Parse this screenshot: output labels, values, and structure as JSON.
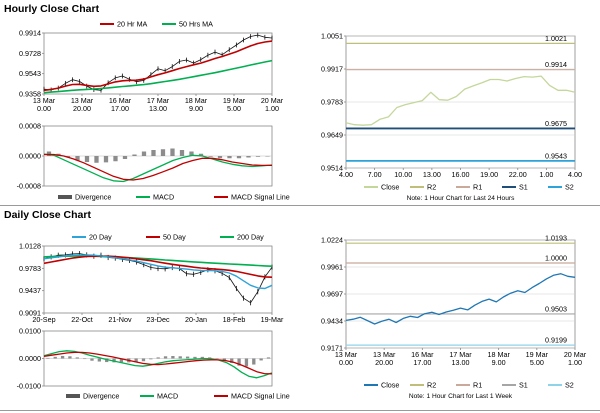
{
  "colors": {
    "red": "#C00000",
    "green": "#00B050",
    "black": "#111111",
    "s1": "#1F4E79",
    "s2": "#2EA3D9",
    "r1": "#C9A99A",
    "r2": "#BFBF7A",
    "close_light": "#C4D79B",
    "close_blue": "#1F77B4",
    "gridline": "#D0D0D0",
    "level_line": "#8FAADC"
  },
  "sections": {
    "hourly_title": "Hourly Close Chart",
    "daily_title": "Daily Close Chart"
  },
  "chart_data": [
    {
      "id": "hourly_price",
      "type": "line",
      "title": "",
      "legend": [
        "20 Hr MA",
        "50 Hrs MA"
      ],
      "yticks": [
        "0.9914",
        "0.9728",
        "0.9543",
        "0.9358"
      ],
      "ylim": [
        0.9358,
        0.9914
      ],
      "xlabels": [
        [
          "13 Mar",
          "0.00"
        ],
        [
          "13 Mar",
          "20.00"
        ],
        [
          "16 Mar",
          "17.00"
        ],
        [
          "17 Mar",
          "13.00"
        ],
        [
          "18 Mar",
          "9.00"
        ],
        [
          "19 Mar",
          "5.00"
        ],
        [
          "20 Mar",
          "1.00"
        ]
      ],
      "series": [
        {
          "name": "Close",
          "values": [
            0.9402,
            0.9395,
            0.9412,
            0.9455,
            0.9488,
            0.9472,
            0.943,
            0.9398,
            0.9392,
            0.946,
            0.9505,
            0.9522,
            0.9492,
            0.947,
            0.9482,
            0.9535,
            0.9588,
            0.957,
            0.9608,
            0.9655,
            0.9668,
            0.964,
            0.9672,
            0.9712,
            0.974,
            0.9715,
            0.9762,
            0.9805,
            0.985,
            0.9882,
            0.9895,
            0.9875,
            0.9868
          ]
        },
        {
          "name": "20 Hr MA",
          "values": [
            0.9392,
            0.94,
            0.9412,
            0.943,
            0.9445,
            0.9446,
            0.9436,
            0.9428,
            0.9432,
            0.945,
            0.9468,
            0.9478,
            0.9482,
            0.9484,
            0.9494,
            0.9514,
            0.9534,
            0.955,
            0.957,
            0.959,
            0.9608,
            0.9624,
            0.964,
            0.966,
            0.9682,
            0.97,
            0.9722,
            0.9744,
            0.977,
            0.9796,
            0.9818,
            0.9832,
            0.984
          ]
        },
        {
          "name": "50 Hrs MA",
          "values": [
            0.937,
            0.9375,
            0.938,
            0.9386,
            0.9392,
            0.9396,
            0.94,
            0.9404,
            0.9408,
            0.9414,
            0.942,
            0.9426,
            0.9432,
            0.9438,
            0.9444,
            0.9452,
            0.9462,
            0.9472,
            0.9482,
            0.9492,
            0.9504,
            0.9516,
            0.9528,
            0.954,
            0.9552,
            0.9566,
            0.958,
            0.9594,
            0.9608,
            0.9622,
            0.9636,
            0.965,
            0.9662
          ]
        }
      ]
    },
    {
      "id": "hourly_macd",
      "type": "line",
      "yticks": [
        "0.0008",
        "0.0000",
        "-0.0008"
      ],
      "ylim": [
        -0.0008,
        0.0008
      ],
      "legend": [
        "Divergence",
        "MACD",
        "MACD Signal Line"
      ],
      "series": [
        {
          "name": "MACD",
          "values": [
            5e-05,
            2e-05,
            -0.0001,
            -0.00022,
            -0.00034,
            -0.00046,
            -0.00058,
            -0.00066,
            -0.00068,
            -0.0006,
            -0.00048,
            -0.00036,
            -0.00024,
            -0.00012,
            -4e-05,
            2e-05,
            0.0,
            -8e-05,
            -0.00016,
            -0.00022,
            -0.00026,
            -0.00028,
            -0.00026,
            -0.00024
          ]
        },
        {
          "name": "MACD Signal Line",
          "values": [
            4e-05,
            4e-05,
            0.0,
            -8e-05,
            -0.00018,
            -0.0003,
            -0.00042,
            -0.00054,
            -0.00062,
            -0.00064,
            -0.0006,
            -0.00052,
            -0.00042,
            -0.00032,
            -0.0002,
            -0.00012,
            -6e-05,
            -6e-05,
            -0.0001,
            -0.00016,
            -0.0002,
            -0.00024,
            -0.00025,
            -0.00025
          ]
        },
        {
          "name": "Divergence",
          "values": [
            0.00012,
            6e-05,
            -4e-05,
            -0.00012,
            -0.00016,
            -0.00018,
            -0.00017,
            -0.00014,
            -8e-05,
            4e-05,
            0.00012,
            0.00016,
            0.00018,
            0.0002,
            0.00016,
            0.00012,
            6e-05,
            -2e-05,
            -6e-05,
            -6e-05,
            -6e-05,
            -4e-05,
            -2e-05,
            0.0
          ]
        }
      ]
    },
    {
      "id": "hourly_levels",
      "type": "line",
      "yticks": [
        "1.0051",
        "0.9917",
        "0.9783",
        "0.9649",
        "0.9514"
      ],
      "ylim": [
        0.9514,
        1.0051
      ],
      "xlabels": [
        "4.00",
        "7.00",
        "10.00",
        "13.00",
        "16.00",
        "19.00",
        "22.00",
        "1.00",
        "4.00"
      ],
      "levels": [
        {
          "name": "R2",
          "value": 1.0021,
          "label": "1.0021"
        },
        {
          "name": "R1",
          "value": 0.9914,
          "label": "0.9914"
        },
        {
          "name": "S1",
          "value": 0.9675,
          "label": "0.9675"
        },
        {
          "name": "S2",
          "value": 0.9543,
          "label": "0.9543"
        }
      ],
      "series": [
        {
          "name": "Close",
          "values": [
            0.9698,
            0.969,
            0.9688,
            0.969,
            0.9712,
            0.9722,
            0.976,
            0.9772,
            0.978,
            0.9788,
            0.9822,
            0.9792,
            0.979,
            0.9805,
            0.9835,
            0.9848,
            0.986,
            0.9874,
            0.9874,
            0.9868,
            0.9878,
            0.9886,
            0.9884,
            0.9888,
            0.985,
            0.983,
            0.983,
            0.9822
          ]
        }
      ],
      "legend": [
        "Close",
        "R2",
        "R1",
        "S1",
        "S2"
      ],
      "note": "Note: 1 Hour Chart for Last 24 Hours"
    },
    {
      "id": "daily_price",
      "type": "line",
      "legend": [
        "20 Day",
        "50 Day",
        "200 Day"
      ],
      "yticks": [
        "1.0128",
        "0.9783",
        "0.9437",
        "0.9091"
      ],
      "ylim": [
        0.9091,
        1.0128
      ],
      "xlabels": [
        "20-Sep",
        "22-Oct",
        "21-Nov",
        "23-Dec",
        "20-Jan",
        "18-Feb",
        "19-Mar"
      ],
      "series": [
        {
          "name": "Close",
          "values": [
            0.993,
            0.996,
            0.9985,
            0.999,
            1.0005,
            1.001,
            0.999,
            0.997,
            0.9985,
            0.995,
            0.994,
            0.992,
            0.9905,
            0.988,
            0.984,
            0.9795,
            0.978,
            0.9775,
            0.9795,
            0.978,
            0.97,
            0.969,
            0.972,
            0.976,
            0.9745,
            0.9705,
            0.964,
            0.947,
            0.932,
            0.925,
            0.942,
            0.965,
            0.98
          ]
        },
        {
          "name": "20 Day",
          "values": [
            0.993,
            0.9945,
            0.996,
            0.9975,
            0.9985,
            0.999,
            0.999,
            0.9985,
            0.9975,
            0.996,
            0.9945,
            0.993,
            0.9915,
            0.9895,
            0.987,
            0.9845,
            0.982,
            0.98,
            0.979,
            0.9782,
            0.977,
            0.9758,
            0.975,
            0.9748,
            0.9745,
            0.9735,
            0.971,
            0.966,
            0.959,
            0.952,
            0.948,
            0.947,
            0.952
          ]
        },
        {
          "name": "50 Day",
          "values": [
            0.986,
            0.988,
            0.99,
            0.992,
            0.994,
            0.9955,
            0.9965,
            0.997,
            0.9972,
            0.997,
            0.9965,
            0.9955,
            0.9945,
            0.993,
            0.9915,
            0.99,
            0.988,
            0.9862,
            0.9845,
            0.983,
            0.9815,
            0.98,
            0.9788,
            0.9778,
            0.977,
            0.9762,
            0.9752,
            0.9735,
            0.9712,
            0.9688,
            0.9665,
            0.965,
            0.9645
          ]
        },
        {
          "name": "200 Day",
          "values": [
            0.996,
            0.9965,
            0.9968,
            0.997,
            0.9972,
            0.9972,
            0.997,
            0.9968,
            0.9965,
            0.996,
            0.9955,
            0.995,
            0.9945,
            0.994,
            0.9935,
            0.9928,
            0.992,
            0.9912,
            0.9905,
            0.9898,
            0.989,
            0.9882,
            0.9875,
            0.9868,
            0.9862,
            0.9856,
            0.985,
            0.9844,
            0.9838,
            0.9832,
            0.9826,
            0.982,
            0.9815
          ]
        }
      ]
    },
    {
      "id": "daily_macd",
      "type": "line",
      "yticks": [
        "0.0100",
        "0.0000",
        "-0.0100"
      ],
      "ylim": [
        -0.01,
        0.01
      ],
      "legend": [
        "Divergence",
        "MACD",
        "MACD Signal Line"
      ],
      "series": [
        {
          "name": "MACD",
          "values": [
            0.001,
            0.0018,
            0.0025,
            0.0028,
            0.0026,
            0.002,
            0.0012,
            0.0005,
            -0.0002,
            -0.0008,
            -0.0014,
            -0.002,
            -0.0026,
            -0.0028,
            -0.0024,
            -0.0018,
            -0.0012,
            -0.0008,
            -0.0006,
            -0.0004,
            -0.0002,
            0.0,
            -0.0001,
            -0.0006,
            -0.0015,
            -0.003,
            -0.005,
            -0.0065,
            -0.007,
            -0.0062,
            -0.0052
          ]
        },
        {
          "name": "MACD Signal Line",
          "values": [
            0.0008,
            0.0012,
            0.0016,
            0.002,
            0.0022,
            0.0022,
            0.002,
            0.0016,
            0.0011,
            0.0006,
            0.0,
            -0.0006,
            -0.0012,
            -0.0018,
            -0.0021,
            -0.0022,
            -0.002,
            -0.0017,
            -0.0014,
            -0.0011,
            -0.0008,
            -0.0006,
            -0.0005,
            -0.0005,
            -0.0008,
            -0.0014,
            -0.0024,
            -0.0036,
            -0.0048,
            -0.0055,
            -0.0056
          ]
        },
        {
          "name": "Divergence",
          "values": [
            0.0002,
            0.0006,
            0.0009,
            0.0008,
            0.0004,
            -0.0002,
            -0.0008,
            -0.0011,
            -0.0013,
            -0.0014,
            -0.0014,
            -0.0014,
            -0.0014,
            -0.001,
            -0.0003,
            0.0004,
            0.0008,
            0.0009,
            0.0008,
            0.0007,
            0.0006,
            0.0006,
            0.0004,
            -0.0001,
            -0.0007,
            -0.0016,
            -0.0026,
            -0.0029,
            -0.0022,
            -0.0007,
            0.0004
          ]
        }
      ]
    },
    {
      "id": "daily_levels",
      "type": "line",
      "yticks": [
        "1.0224",
        "0.9961",
        "0.9697",
        "0.9434",
        "0.9171"
      ],
      "ylim": [
        0.9171,
        1.0224
      ],
      "xlabels": [
        [
          "13 Mar",
          "0.00"
        ],
        [
          "13 Mar",
          "20.00"
        ],
        [
          "16 Mar",
          "17.00"
        ],
        [
          "17 Mar",
          "13.00"
        ],
        [
          "18 Mar",
          "9.00"
        ],
        [
          "19 Mar",
          "5.00"
        ],
        [
          "20 Mar",
          "1.00"
        ]
      ],
      "levels": [
        {
          "name": "R2",
          "value": 1.0193,
          "label": "1.0193"
        },
        {
          "name": "R1",
          "value": 1.0,
          "label": "1.0000"
        },
        {
          "name": "S1",
          "value": 0.9503,
          "label": "0.9503"
        },
        {
          "name": "S2",
          "value": 0.9199,
          "label": "0.9199"
        }
      ],
      "series": [
        {
          "name": "Close",
          "values": [
            0.944,
            0.9452,
            0.947,
            0.9438,
            0.9405,
            0.9432,
            0.9452,
            0.942,
            0.946,
            0.948,
            0.9468,
            0.9505,
            0.952,
            0.9498,
            0.9522,
            0.954,
            0.956,
            0.9542,
            0.9588,
            0.9625,
            0.9648,
            0.962,
            0.9668,
            0.9705,
            0.973,
            0.9712,
            0.976,
            0.98,
            0.9845,
            0.988,
            0.9895,
            0.987,
            0.986
          ]
        }
      ],
      "legend": [
        "Close",
        "R2",
        "R1",
        "S1",
        "S2"
      ],
      "note": "Note: 1 Hour Chart for Last 1 Week"
    }
  ]
}
